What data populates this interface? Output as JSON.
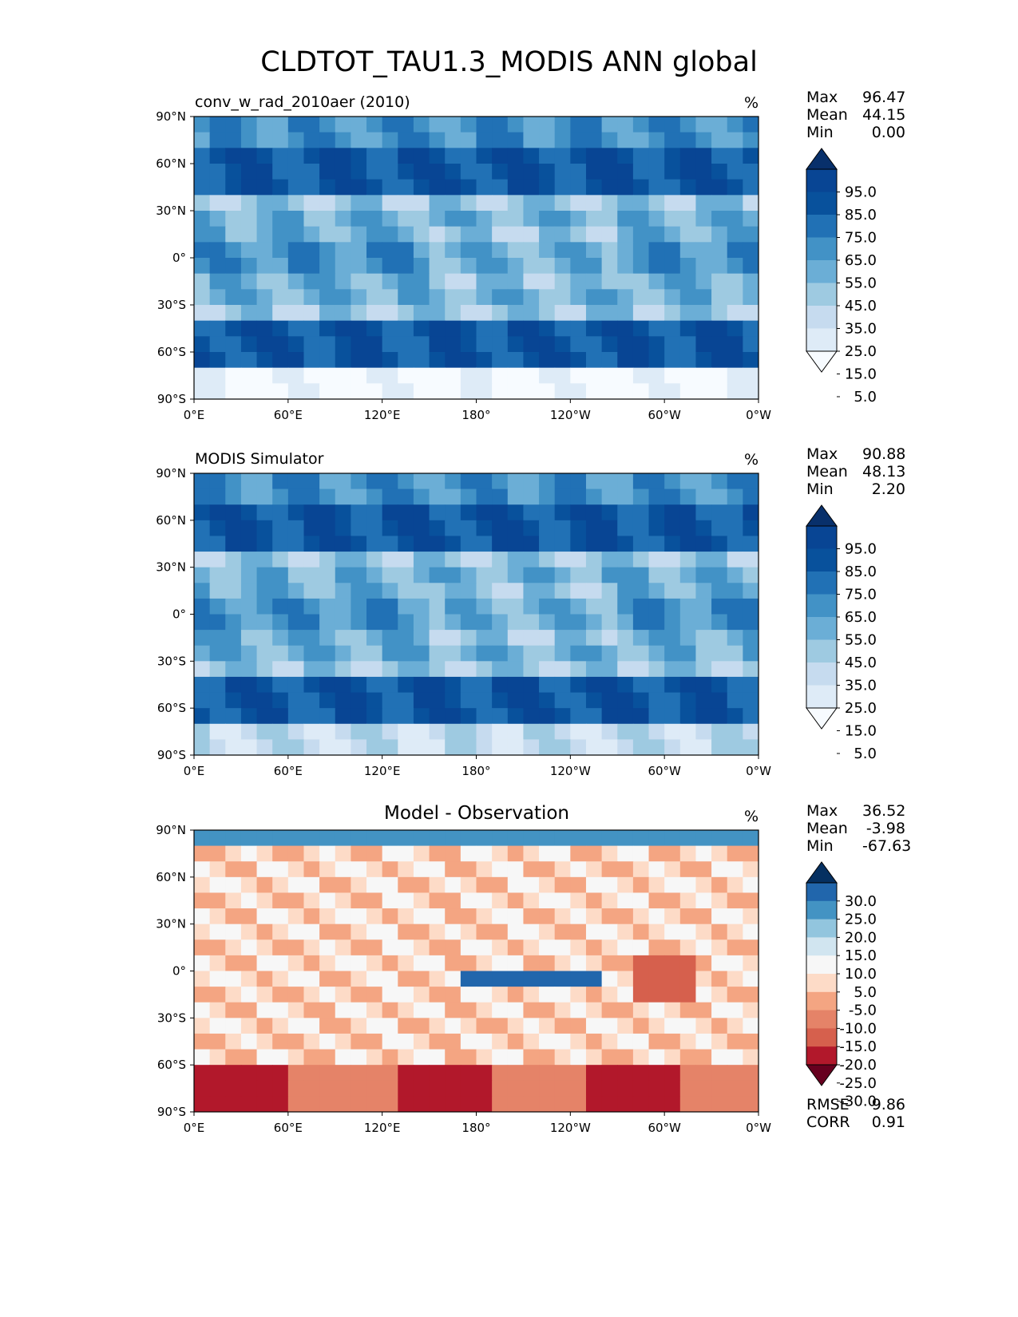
{
  "figure": {
    "title": "CLDTOT_TAU1.3_MODIS ANN global",
    "unit_label": "%"
  },
  "colors": {
    "blues": [
      "#f7fbff",
      "#deebf7",
      "#c6dbef",
      "#9ecae1",
      "#6baed6",
      "#4292c6",
      "#2171b5",
      "#08519c",
      "#084594",
      "#08306b"
    ],
    "diff": [
      "#67001f",
      "#b2182b",
      "#d6604d",
      "#e58368",
      "#f4a582",
      "#fddbc7",
      "#f7f7f7",
      "#d1e5f0",
      "#92c5de",
      "#4393c3",
      "#2166ac",
      "#053061"
    ]
  },
  "chart_data": [
    {
      "type": "heatmap",
      "panel_title": "conv_w_rad_2010aer (2010)",
      "unit": "%",
      "xlim": [
        0,
        360
      ],
      "ylim": [
        -90,
        90
      ],
      "x_ticks": [
        "0°E",
        "60°E",
        "120°E",
        "180°",
        "120°W",
        "60°W",
        "0°W"
      ],
      "y_ticks": [
        "90°N",
        "60°N",
        "30°N",
        "0°",
        "30°S",
        "60°S",
        "90°S"
      ],
      "stats": {
        "max_label": "Max",
        "max": "96.47",
        "mean_label": "Mean",
        "mean": "44.15",
        "min_label": "Min",
        "min": "0.00"
      },
      "colorbar": {
        "levels": [
          "95.0",
          "85.0",
          "75.0",
          "65.0",
          "55.0",
          "45.0",
          "35.0",
          "25.0",
          "15.0",
          "5.0"
        ],
        "extend": "both"
      }
    },
    {
      "type": "heatmap",
      "panel_title": "MODIS Simulator",
      "unit": "%",
      "xlim": [
        0,
        360
      ],
      "ylim": [
        -90,
        90
      ],
      "x_ticks": [
        "0°E",
        "60°E",
        "120°E",
        "180°",
        "120°W",
        "60°W",
        "0°W"
      ],
      "y_ticks": [
        "90°N",
        "60°N",
        "30°N",
        "0°",
        "30°S",
        "60°S",
        "90°S"
      ],
      "stats": {
        "max_label": "Max",
        "max": "90.88",
        "mean_label": "Mean",
        "mean": "48.13",
        "min_label": "Min",
        "min": "2.20"
      },
      "colorbar": {
        "levels": [
          "95.0",
          "85.0",
          "75.0",
          "65.0",
          "55.0",
          "45.0",
          "35.0",
          "25.0",
          "15.0",
          "5.0"
        ],
        "extend": "both"
      }
    },
    {
      "type": "heatmap",
      "panel_title": "Model - Observation",
      "unit": "%",
      "xlim": [
        0,
        360
      ],
      "ylim": [
        -90,
        90
      ],
      "x_ticks": [
        "0°E",
        "60°E",
        "120°E",
        "180°",
        "120°W",
        "60°W",
        "0°W"
      ],
      "y_ticks": [
        "90°N",
        "60°N",
        "30°N",
        "0°",
        "30°S",
        "60°S",
        "90°S"
      ],
      "stats": {
        "max_label": "Max",
        "max": "36.52",
        "mean_label": "Mean",
        "mean": "-3.98",
        "min_label": "Min",
        "min": "-67.63"
      },
      "colorbar": {
        "levels": [
          "30.0",
          "25.0",
          "20.0",
          "15.0",
          "10.0",
          "5.0",
          "-5.0",
          "-10.0",
          "-15.0",
          "-20.0",
          "-25.0",
          "-30.0"
        ],
        "extend": "both"
      },
      "metrics": {
        "rmse_label": "RMSE",
        "rmse": "9.86",
        "corr_label": "CORR",
        "corr": "0.91"
      }
    }
  ]
}
